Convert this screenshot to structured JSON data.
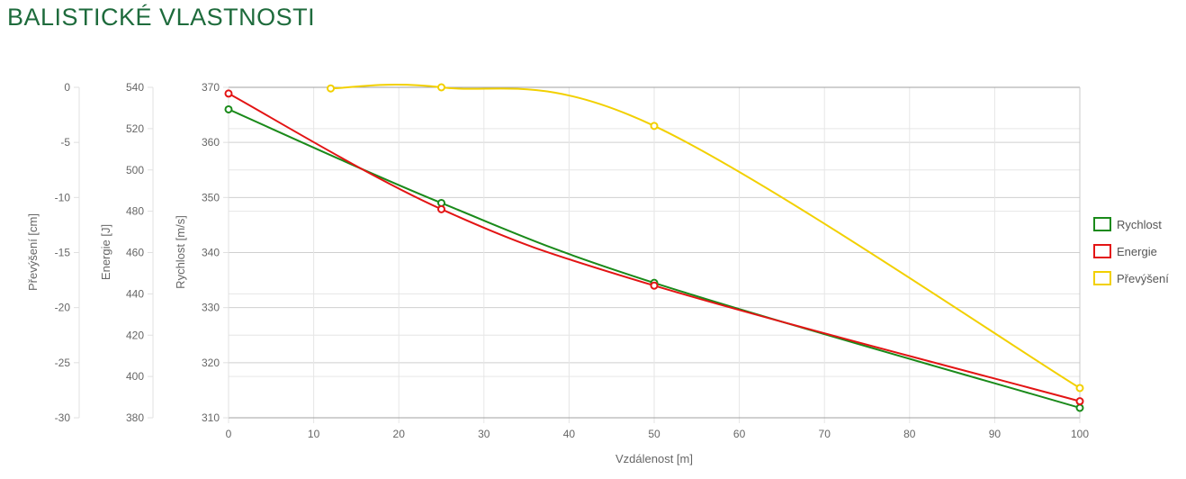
{
  "page": {
    "title": "BALISTICKÉ VLASTNOSTI"
  },
  "chart_data": {
    "type": "line",
    "xlabel": "Vzdálenost [m]",
    "xlim": [
      0,
      100
    ],
    "xticks": [
      0,
      10,
      20,
      30,
      40,
      50,
      60,
      70,
      80,
      90,
      100
    ],
    "grid": true,
    "legend_position": "right",
    "axes": [
      {
        "id": "velocity",
        "label": "Rychlost [m/s]",
        "range": [
          310,
          370
        ],
        "ticks": [
          310,
          320,
          330,
          340,
          350,
          360,
          370
        ]
      },
      {
        "id": "energy",
        "label": "Energie [J]",
        "range": [
          380,
          540
        ],
        "ticks": [
          380,
          400,
          420,
          440,
          460,
          480,
          500,
          520,
          540
        ]
      },
      {
        "id": "elevation",
        "label": "Převýšení [cm]",
        "range": [
          -30,
          0
        ],
        "ticks": [
          -30,
          -25,
          -20,
          -15,
          -10,
          -5,
          0
        ]
      }
    ],
    "series": [
      {
        "name": "Rychlost",
        "axis": "velocity",
        "color": "#1a8a1a",
        "x": [
          0,
          25,
          50,
          100
        ],
        "values": [
          366,
          349,
          334.5,
          311.8
        ]
      },
      {
        "name": "Energie",
        "axis": "energy",
        "color": "#e31414",
        "x": [
          0,
          25,
          50,
          100
        ],
        "values": [
          537,
          481,
          444,
          388
        ]
      },
      {
        "name": "Převýšení",
        "axis": "elevation",
        "color": "#f2d000",
        "x": [
          12,
          25,
          50,
          100
        ],
        "values": [
          -0.1,
          0,
          -3.5,
          -27.3
        ]
      }
    ]
  }
}
